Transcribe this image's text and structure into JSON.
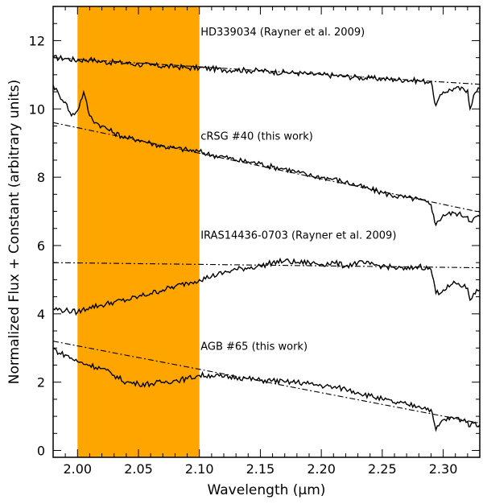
{
  "chart_data": {
    "type": "line",
    "title": "",
    "xlabel": "Wavelength (μm)",
    "ylabel": "Normalized Flux + Constant (arbitrary units)",
    "xlim": [
      1.98,
      2.33
    ],
    "ylim": [
      -0.2,
      13.0
    ],
    "x_ticks": [
      2.0,
      2.05,
      2.1,
      2.15,
      2.2,
      2.25,
      2.3
    ],
    "x_tick_labels": [
      "2.00",
      "2.05",
      "2.10",
      "2.15",
      "2.20",
      "2.25",
      "2.30"
    ],
    "y_ticks": [
      0,
      2,
      4,
      6,
      8,
      10,
      12
    ],
    "y_tick_labels": [
      "0",
      "2",
      "4",
      "6",
      "8",
      "10",
      "12"
    ],
    "shaded_region": {
      "x_start": 2.0,
      "x_end": 2.1,
      "color": "#FFA500"
    },
    "series": [
      {
        "name": "HD339034 (Rayner et al. 2009)",
        "label": "HD339034 (Rayner et al. 2009)",
        "label_pos": [
          2.101,
          12.15
        ],
        "x": [
          1.98,
          1.99,
          2.0,
          2.01,
          2.02,
          2.03,
          2.04,
          2.05,
          2.06,
          2.07,
          2.08,
          2.09,
          2.1,
          2.11,
          2.12,
          2.13,
          2.14,
          2.15,
          2.16,
          2.17,
          2.18,
          2.19,
          2.2,
          2.21,
          2.22,
          2.23,
          2.24,
          2.25,
          2.26,
          2.27,
          2.28,
          2.29,
          2.292,
          2.294,
          2.3,
          2.31,
          2.32,
          2.322,
          2.325,
          2.33
        ],
        "values": [
          11.5,
          11.48,
          11.42,
          11.45,
          11.38,
          11.36,
          11.34,
          11.3,
          11.28,
          11.25,
          11.24,
          11.2,
          11.2,
          11.18,
          11.14,
          11.15,
          11.12,
          11.12,
          11.08,
          11.07,
          11.05,
          11.02,
          11.0,
          10.98,
          10.95,
          10.92,
          10.9,
          10.88,
          10.86,
          10.85,
          10.82,
          10.8,
          10.4,
          10.1,
          10.5,
          10.6,
          10.55,
          10.0,
          10.4,
          10.6
        ],
        "continuum": {
          "x": [
            1.98,
            2.33
          ],
          "values": [
            11.5,
            10.72
          ]
        }
      },
      {
        "name": "cRSG #40 (this work)",
        "label": "cRSG #40 (this work)",
        "label_pos": [
          2.101,
          9.1
        ],
        "x": [
          1.98,
          1.985,
          1.99,
          1.995,
          2.0,
          2.005,
          2.01,
          2.015,
          2.02,
          2.03,
          2.04,
          2.05,
          2.06,
          2.07,
          2.08,
          2.09,
          2.1,
          2.11,
          2.12,
          2.13,
          2.14,
          2.15,
          2.16,
          2.17,
          2.18,
          2.19,
          2.2,
          2.21,
          2.22,
          2.23,
          2.24,
          2.25,
          2.26,
          2.27,
          2.28,
          2.29,
          2.292,
          2.294,
          2.3,
          2.31,
          2.32,
          2.322,
          2.325,
          2.33
        ],
        "values": [
          10.7,
          10.4,
          10.2,
          9.8,
          9.95,
          10.5,
          9.8,
          9.6,
          9.5,
          9.3,
          9.15,
          9.1,
          9.0,
          8.9,
          8.85,
          8.8,
          8.75,
          8.65,
          8.6,
          8.5,
          8.45,
          8.4,
          8.3,
          8.25,
          8.15,
          8.05,
          8.0,
          7.95,
          7.85,
          7.75,
          7.65,
          7.55,
          7.45,
          7.4,
          7.35,
          7.2,
          6.9,
          6.6,
          6.9,
          6.95,
          6.85,
          6.7,
          6.8,
          6.85
        ],
        "continuum": {
          "x": [
            1.98,
            2.33
          ],
          "values": [
            9.6,
            6.98
          ]
        }
      },
      {
        "name": "IRAS14436-0703 (Rayner et al. 2009)",
        "label": "IRAS14436-0703 (Rayner et al. 2009)",
        "label_pos": [
          2.101,
          6.2
        ],
        "x": [
          1.98,
          1.99,
          2.0,
          2.01,
          2.02,
          2.03,
          2.04,
          2.05,
          2.06,
          2.07,
          2.08,
          2.09,
          2.1,
          2.11,
          2.12,
          2.13,
          2.14,
          2.15,
          2.16,
          2.17,
          2.18,
          2.19,
          2.2,
          2.21,
          2.22,
          2.23,
          2.24,
          2.25,
          2.26,
          2.27,
          2.28,
          2.29,
          2.292,
          2.294,
          2.3,
          2.31,
          2.32,
          2.322,
          2.325,
          2.33
        ],
        "values": [
          4.15,
          4.1,
          4.05,
          4.2,
          4.25,
          4.35,
          4.4,
          4.5,
          4.6,
          4.7,
          4.8,
          4.9,
          5.0,
          5.1,
          5.2,
          5.3,
          5.35,
          5.4,
          5.5,
          5.55,
          5.5,
          5.5,
          5.45,
          5.5,
          5.4,
          5.5,
          5.45,
          5.4,
          5.35,
          5.3,
          5.4,
          5.3,
          5.0,
          4.6,
          4.7,
          4.9,
          4.75,
          4.4,
          4.6,
          4.7
        ],
        "continuum": {
          "x": [
            1.98,
            2.33
          ],
          "values": [
            5.5,
            5.35
          ]
        }
      },
      {
        "name": "AGB #65 (this work)",
        "label": "AGB #65 (this work)",
        "label_pos": [
          2.101,
          2.95
        ],
        "x": [
          1.98,
          1.985,
          1.99,
          2.0,
          2.01,
          2.02,
          2.03,
          2.04,
          2.05,
          2.06,
          2.07,
          2.08,
          2.09,
          2.1,
          2.11,
          2.12,
          2.13,
          2.14,
          2.15,
          2.16,
          2.17,
          2.18,
          2.19,
          2.2,
          2.21,
          2.22,
          2.23,
          2.24,
          2.25,
          2.26,
          2.27,
          2.28,
          2.29,
          2.292,
          2.294,
          2.3,
          2.31,
          2.32,
          2.322,
          2.325,
          2.33
        ],
        "values": [
          3.0,
          2.85,
          2.8,
          2.6,
          2.5,
          2.4,
          2.2,
          2.0,
          1.95,
          1.95,
          2.0,
          2.05,
          2.1,
          2.2,
          2.2,
          2.15,
          2.15,
          2.1,
          2.05,
          2.05,
          2.0,
          2.0,
          1.95,
          1.9,
          1.85,
          1.8,
          1.7,
          1.6,
          1.5,
          1.4,
          1.35,
          1.3,
          1.2,
          0.9,
          0.6,
          0.9,
          0.95,
          0.85,
          0.7,
          0.8,
          0.75
        ],
        "continuum": {
          "x": [
            1.98,
            2.33
          ],
          "values": [
            3.2,
            0.8
          ]
        }
      }
    ]
  }
}
